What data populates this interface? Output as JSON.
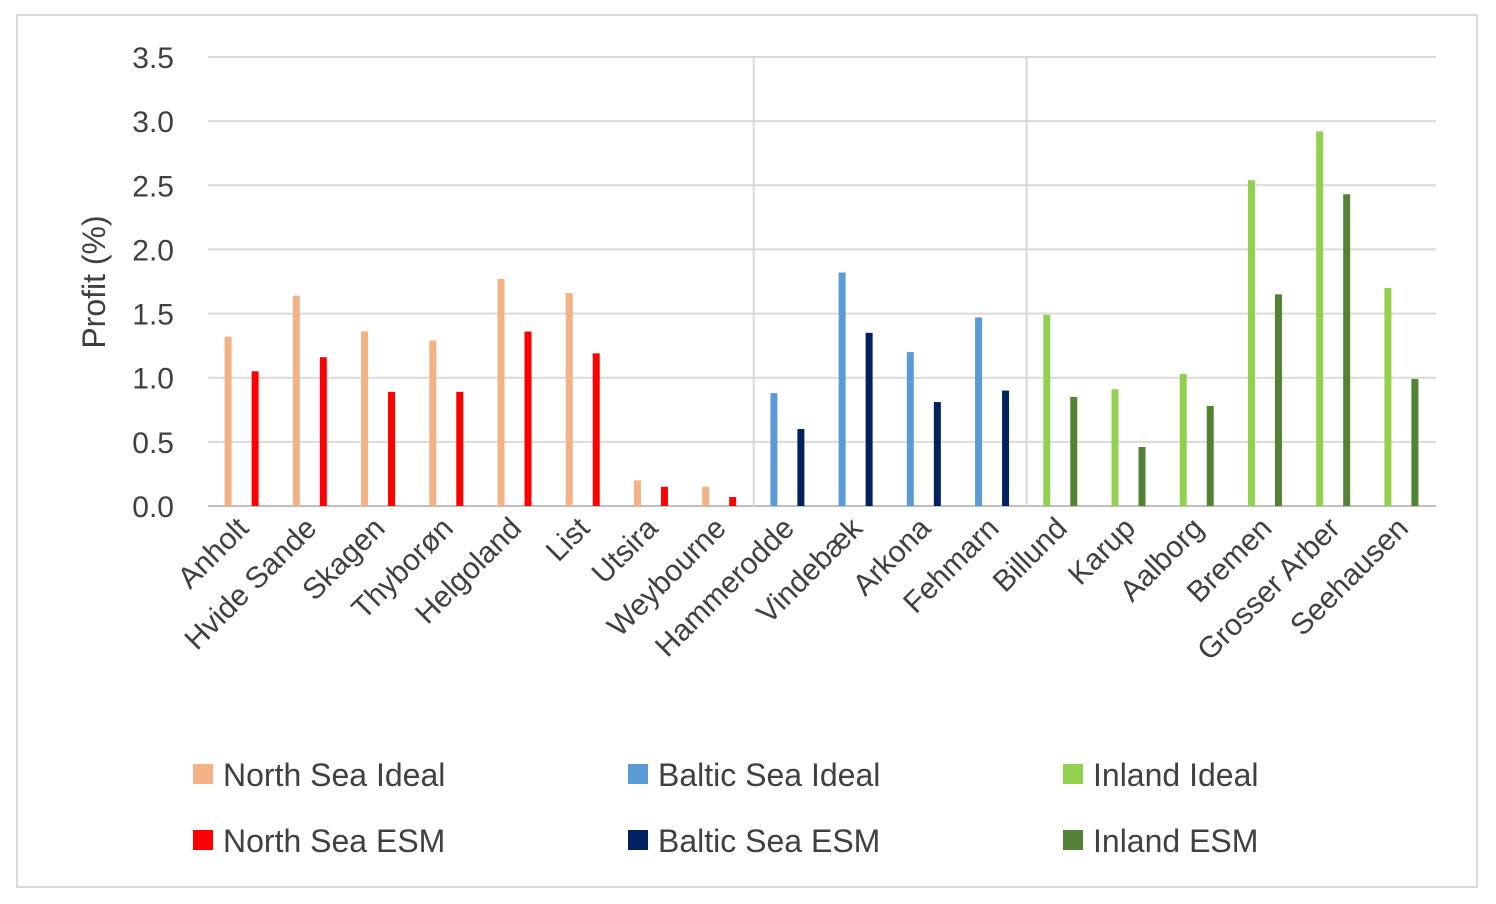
{
  "chart_data": {
    "type": "bar",
    "title": "",
    "xlabel": "",
    "ylabel": "Profit (%)",
    "ylim": [
      0,
      3.5
    ],
    "yticks": [
      "0.0",
      "0.5",
      "1.0",
      "1.5",
      "2.0",
      "2.5",
      "3.0",
      "3.5"
    ],
    "grid": true,
    "legend_position": "bottom",
    "categories": [
      "Anholt",
      "Hvide Sande",
      "Skagen",
      "Thyborøn",
      "Helgoland",
      "List",
      "Utsira",
      "Weybourne",
      "Hammerodde",
      "Vindebæk",
      "Arkona",
      "Fehmarn",
      "Billund",
      "Karup",
      "Aalborg",
      "Bremen",
      "Grosser Arber",
      "Seehausen"
    ],
    "groups": [
      {
        "name": "North Sea",
        "categories": [
          "Anholt",
          "Hvide Sande",
          "Skagen",
          "Thyborøn",
          "Helgoland",
          "List",
          "Utsira",
          "Weybourne"
        ]
      },
      {
        "name": "Baltic Sea",
        "categories": [
          "Hammerodde",
          "Vindebæk",
          "Arkona",
          "Fehmarn"
        ]
      },
      {
        "name": "Inland",
        "categories": [
          "Billund",
          "Karup",
          "Aalborg",
          "Bremen",
          "Grosser Arber",
          "Seehausen"
        ]
      }
    ],
    "series": [
      {
        "name": "North Sea Ideal",
        "color": "#f4b183",
        "kind": "ideal",
        "values": [
          1.32,
          1.64,
          1.36,
          1.29,
          1.77,
          1.66,
          0.2,
          0.15,
          null,
          null,
          null,
          null,
          null,
          null,
          null,
          null,
          null,
          null
        ]
      },
      {
        "name": "North Sea ESM",
        "color": "#ff0000",
        "kind": "esm",
        "values": [
          1.05,
          1.16,
          0.89,
          0.89,
          1.36,
          1.19,
          0.15,
          0.07,
          null,
          null,
          null,
          null,
          null,
          null,
          null,
          null,
          null,
          null
        ]
      },
      {
        "name": "Baltic Sea Ideal",
        "color": "#5b9bd5",
        "kind": "ideal",
        "values": [
          null,
          null,
          null,
          null,
          null,
          null,
          null,
          null,
          0.88,
          1.82,
          1.2,
          1.47,
          null,
          null,
          null,
          null,
          null,
          null
        ]
      },
      {
        "name": "Baltic Sea ESM",
        "color": "#002060",
        "kind": "esm",
        "values": [
          null,
          null,
          null,
          null,
          null,
          null,
          null,
          null,
          0.6,
          1.35,
          0.81,
          0.9,
          null,
          null,
          null,
          null,
          null,
          null
        ]
      },
      {
        "name": "Inland Ideal",
        "color": "#92d050",
        "kind": "ideal",
        "values": [
          null,
          null,
          null,
          null,
          null,
          null,
          null,
          null,
          null,
          null,
          null,
          null,
          1.49,
          0.91,
          1.03,
          2.54,
          2.92,
          1.7
        ]
      },
      {
        "name": "Inland ESM",
        "color": "#548235",
        "kind": "esm",
        "values": [
          null,
          null,
          null,
          null,
          null,
          null,
          null,
          null,
          null,
          null,
          null,
          null,
          0.85,
          0.46,
          0.78,
          1.65,
          2.43,
          0.99
        ]
      }
    ],
    "legend": [
      {
        "label": "North Sea Ideal",
        "color": "#f4b183"
      },
      {
        "label": "Baltic Sea Ideal",
        "color": "#5b9bd5"
      },
      {
        "label": "Inland Ideal",
        "color": "#92d050"
      },
      {
        "label": "North Sea ESM",
        "color": "#ff0000"
      },
      {
        "label": "Baltic Sea ESM",
        "color": "#002060"
      },
      {
        "label": "Inland ESM",
        "color": "#548235"
      }
    ]
  }
}
